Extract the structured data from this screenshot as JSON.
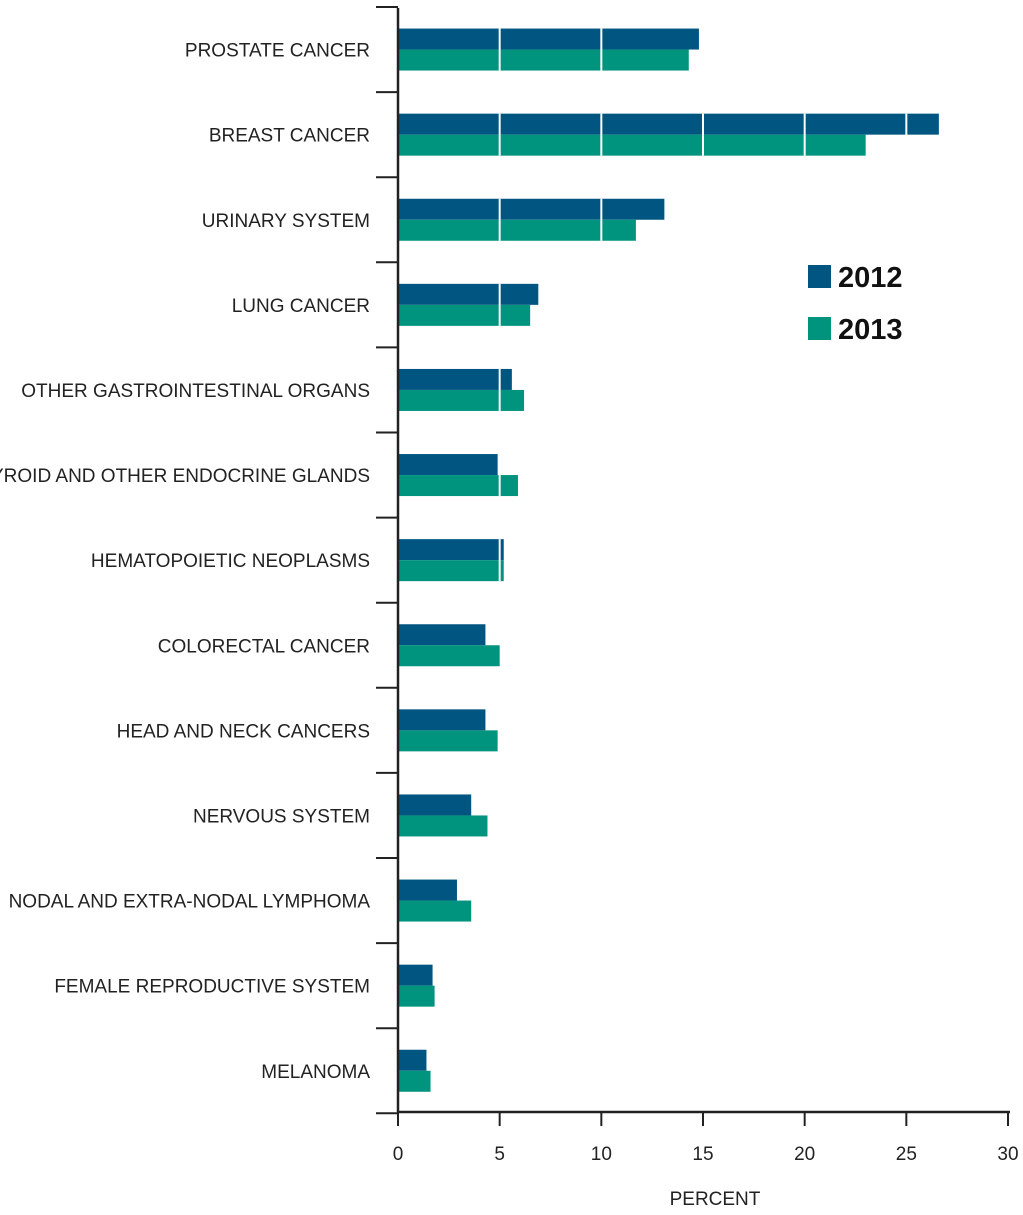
{
  "chart_data": {
    "type": "bar",
    "orientation": "horizontal",
    "categories": [
      "PROSTATE CANCER",
      "BREAST CANCER",
      "URINARY SYSTEM",
      "LUNG CANCER",
      "OTHER GASTROINTESTINAL ORGANS",
      "THYROID AND OTHER ENDOCRINE GLANDS",
      "HEMATOPOIETIC NEOPLASMS",
      "COLORECTAL CANCER",
      "HEAD AND NECK CANCERS",
      "NERVOUS SYSTEM",
      "NODAL AND EXTRA-NODAL LYMPHOMA",
      "FEMALE REPRODUCTIVE SYSTEM",
      "MELANOMA"
    ],
    "series": [
      {
        "name": "2012",
        "color": "#005581",
        "values": [
          14.8,
          26.6,
          13.1,
          6.9,
          5.6,
          4.9,
          5.2,
          4.3,
          4.3,
          3.6,
          2.9,
          1.7,
          1.4
        ]
      },
      {
        "name": "2013",
        "color": "#00937e",
        "values": [
          14.3,
          23.0,
          11.7,
          6.5,
          6.2,
          5.9,
          5.2,
          5.0,
          4.9,
          4.4,
          3.6,
          1.8,
          1.6
        ]
      }
    ],
    "xlabel": "PERCENT",
    "ylabel": "",
    "xlim": [
      0,
      30
    ],
    "xticks": [
      0,
      5,
      10,
      15,
      20,
      25,
      30
    ],
    "grid": "vertical white lines inside bars",
    "legend_position": "top-right"
  }
}
